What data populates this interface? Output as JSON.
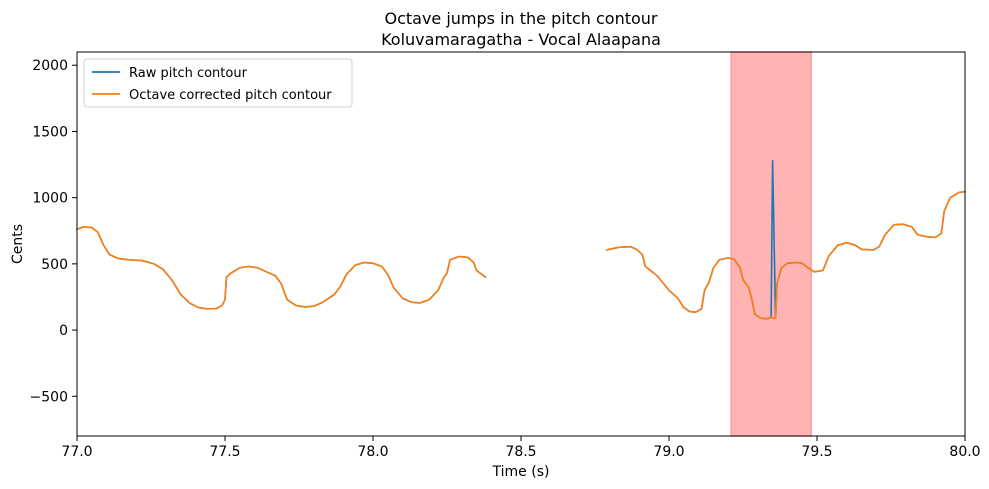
{
  "chart_data": {
    "type": "line",
    "title": "Octave jumps in the pitch contour",
    "subtitle": "Koluvamaragatha - Vocal Alaapana",
    "xlabel": "Time (s)",
    "ylabel": "Cents",
    "xlim": [
      77.0,
      80.0
    ],
    "ylim": [
      -800,
      2100
    ],
    "xticks": [
      77.0,
      77.5,
      78.0,
      78.5,
      79.0,
      79.5,
      80.0
    ],
    "xtick_labels": [
      "77.0",
      "77.5",
      "78.0",
      "78.5",
      "79.0",
      "79.5",
      "80.0"
    ],
    "yticks": [
      -500,
      0,
      500,
      1000,
      1500,
      2000
    ],
    "ytick_labels": [
      "−500",
      "0",
      "500",
      "1000",
      "1500",
      "2000"
    ],
    "grid": false,
    "legend_position": "top-left",
    "highlight_region": {
      "x_start": 79.21,
      "x_end": 79.48,
      "color": "#ff9999"
    },
    "series": [
      {
        "name": "Raw pitch contour",
        "color": "#1f77b4",
        "segments": [
          [
            [
              77.0,
              760
            ],
            [
              77.02,
              778
            ],
            [
              77.05,
              775
            ],
            [
              77.07,
              740
            ],
            [
              77.09,
              640
            ],
            [
              77.11,
              570
            ],
            [
              77.14,
              540
            ],
            [
              77.18,
              530
            ],
            [
              77.22,
              525
            ],
            [
              77.26,
              500
            ],
            [
              77.29,
              460
            ],
            [
              77.32,
              380
            ],
            [
              77.35,
              270
            ],
            [
              77.38,
              205
            ],
            [
              77.41,
              170
            ],
            [
              77.44,
              160
            ],
            [
              77.47,
              162
            ],
            [
              77.49,
              185
            ],
            [
              77.5,
              230
            ],
            [
              77.505,
              400
            ],
            [
              77.52,
              430
            ],
            [
              77.55,
              470
            ],
            [
              77.58,
              480
            ],
            [
              77.61,
              470
            ],
            [
              77.64,
              440
            ],
            [
              77.67,
              410
            ],
            [
              77.69,
              350
            ],
            [
              77.71,
              230
            ],
            [
              77.74,
              185
            ],
            [
              77.77,
              175
            ],
            [
              77.8,
              180
            ],
            [
              77.83,
              210
            ],
            [
              77.87,
              270
            ],
            [
              77.89,
              330
            ],
            [
              77.91,
              420
            ],
            [
              77.94,
              490
            ],
            [
              77.97,
              510
            ],
            [
              78.0,
              505
            ],
            [
              78.03,
              480
            ],
            [
              78.05,
              420
            ],
            [
              78.07,
              320
            ],
            [
              78.1,
              240
            ],
            [
              78.13,
              210
            ],
            [
              78.16,
              205
            ],
            [
              78.19,
              230
            ],
            [
              78.22,
              300
            ],
            [
              78.24,
              400
            ],
            [
              78.25,
              430
            ],
            [
              78.26,
              530
            ],
            [
              78.29,
              555
            ],
            [
              78.32,
              550
            ],
            [
              78.34,
              510
            ],
            [
              78.35,
              450
            ],
            [
              78.38,
              400
            ]
          ],
          [
            [
              78.79,
              605
            ],
            [
              78.83,
              625
            ],
            [
              78.87,
              630
            ],
            [
              78.89,
              610
            ],
            [
              78.91,
              570
            ],
            [
              78.92,
              480
            ],
            [
              78.96,
              410
            ],
            [
              79.0,
              300
            ],
            [
              79.03,
              240
            ],
            [
              79.05,
              170
            ],
            [
              79.07,
              140
            ],
            [
              79.09,
              135
            ],
            [
              79.11,
              160
            ],
            [
              79.12,
              300
            ],
            [
              79.135,
              360
            ],
            [
              79.15,
              470
            ],
            [
              79.17,
              530
            ],
            [
              79.2,
              545
            ],
            [
              79.22,
              535
            ],
            [
              79.24,
              470
            ],
            [
              79.25,
              380
            ],
            [
              79.27,
              320
            ],
            [
              79.28,
              230
            ],
            [
              79.29,
              120
            ],
            [
              79.31,
              90
            ],
            [
              79.33,
              85
            ],
            [
              79.345,
              95
            ],
            [
              79.35,
              1280
            ],
            [
              79.36,
              90
            ],
            [
              79.365,
              350
            ],
            [
              79.38,
              470
            ],
            [
              79.4,
              505
            ],
            [
              79.43,
              510
            ],
            [
              79.45,
              505
            ],
            [
              79.47,
              470
            ],
            [
              79.49,
              440
            ],
            [
              79.52,
              450
            ],
            [
              79.54,
              560
            ],
            [
              79.57,
              640
            ],
            [
              79.6,
              660
            ],
            [
              79.63,
              640
            ],
            [
              79.65,
              610
            ],
            [
              79.69,
              605
            ],
            [
              79.71,
              630
            ],
            [
              79.73,
              720
            ],
            [
              79.76,
              795
            ],
            [
              79.79,
              800
            ],
            [
              79.82,
              780
            ],
            [
              79.84,
              720
            ],
            [
              79.87,
              705
            ],
            [
              79.9,
              700
            ],
            [
              79.92,
              730
            ],
            [
              79.93,
              900
            ],
            [
              79.95,
              1000
            ],
            [
              79.98,
              1040
            ],
            [
              80.0,
              1045
            ]
          ]
        ]
      },
      {
        "name": "Octave corrected pitch contour",
        "color": "#ff7f0e",
        "segments": [
          [
            [
              77.0,
              760
            ],
            [
              77.02,
              778
            ],
            [
              77.05,
              775
            ],
            [
              77.07,
              740
            ],
            [
              77.09,
              640
            ],
            [
              77.11,
              570
            ],
            [
              77.14,
              540
            ],
            [
              77.18,
              530
            ],
            [
              77.22,
              525
            ],
            [
              77.26,
              500
            ],
            [
              77.29,
              460
            ],
            [
              77.32,
              380
            ],
            [
              77.35,
              270
            ],
            [
              77.38,
              205
            ],
            [
              77.41,
              170
            ],
            [
              77.44,
              160
            ],
            [
              77.47,
              162
            ],
            [
              77.49,
              185
            ],
            [
              77.5,
              230
            ],
            [
              77.505,
              400
            ],
            [
              77.52,
              430
            ],
            [
              77.55,
              470
            ],
            [
              77.58,
              480
            ],
            [
              77.61,
              470
            ],
            [
              77.64,
              440
            ],
            [
              77.67,
              410
            ],
            [
              77.69,
              350
            ],
            [
              77.71,
              230
            ],
            [
              77.74,
              185
            ],
            [
              77.77,
              175
            ],
            [
              77.8,
              180
            ],
            [
              77.83,
              210
            ],
            [
              77.87,
              270
            ],
            [
              77.89,
              330
            ],
            [
              77.91,
              420
            ],
            [
              77.94,
              490
            ],
            [
              77.97,
              510
            ],
            [
              78.0,
              505
            ],
            [
              78.03,
              480
            ],
            [
              78.05,
              420
            ],
            [
              78.07,
              320
            ],
            [
              78.1,
              240
            ],
            [
              78.13,
              210
            ],
            [
              78.16,
              205
            ],
            [
              78.19,
              230
            ],
            [
              78.22,
              300
            ],
            [
              78.24,
              400
            ],
            [
              78.25,
              430
            ],
            [
              78.26,
              530
            ],
            [
              78.29,
              555
            ],
            [
              78.32,
              550
            ],
            [
              78.34,
              510
            ],
            [
              78.35,
              450
            ],
            [
              78.38,
              400
            ]
          ],
          [
            [
              78.79,
              605
            ],
            [
              78.83,
              625
            ],
            [
              78.87,
              630
            ],
            [
              78.89,
              610
            ],
            [
              78.91,
              570
            ],
            [
              78.92,
              480
            ],
            [
              78.96,
              410
            ],
            [
              79.0,
              300
            ],
            [
              79.03,
              240
            ],
            [
              79.05,
              170
            ],
            [
              79.07,
              140
            ],
            [
              79.09,
              135
            ],
            [
              79.11,
              160
            ],
            [
              79.12,
              300
            ],
            [
              79.135,
              360
            ],
            [
              79.15,
              470
            ],
            [
              79.17,
              530
            ],
            [
              79.2,
              545
            ],
            [
              79.22,
              535
            ],
            [
              79.24,
              470
            ],
            [
              79.25,
              380
            ],
            [
              79.27,
              320
            ],
            [
              79.28,
              230
            ],
            [
              79.29,
              120
            ],
            [
              79.31,
              90
            ],
            [
              79.33,
              85
            ],
            [
              79.345,
              95
            ],
            [
              79.35,
              90
            ],
            [
              79.36,
              90
            ],
            [
              79.365,
              350
            ],
            [
              79.38,
              470
            ],
            [
              79.4,
              505
            ],
            [
              79.43,
              510
            ],
            [
              79.45,
              505
            ],
            [
              79.47,
              470
            ],
            [
              79.49,
              440
            ],
            [
              79.52,
              450
            ],
            [
              79.54,
              560
            ],
            [
              79.57,
              640
            ],
            [
              79.6,
              660
            ],
            [
              79.63,
              640
            ],
            [
              79.65,
              610
            ],
            [
              79.69,
              605
            ],
            [
              79.71,
              630
            ],
            [
              79.73,
              720
            ],
            [
              79.76,
              795
            ],
            [
              79.79,
              800
            ],
            [
              79.82,
              780
            ],
            [
              79.84,
              720
            ],
            [
              79.87,
              705
            ],
            [
              79.9,
              700
            ],
            [
              79.92,
              730
            ],
            [
              79.93,
              900
            ],
            [
              79.95,
              1000
            ],
            [
              79.98,
              1040
            ],
            [
              80.0,
              1045
            ]
          ]
        ]
      }
    ]
  }
}
